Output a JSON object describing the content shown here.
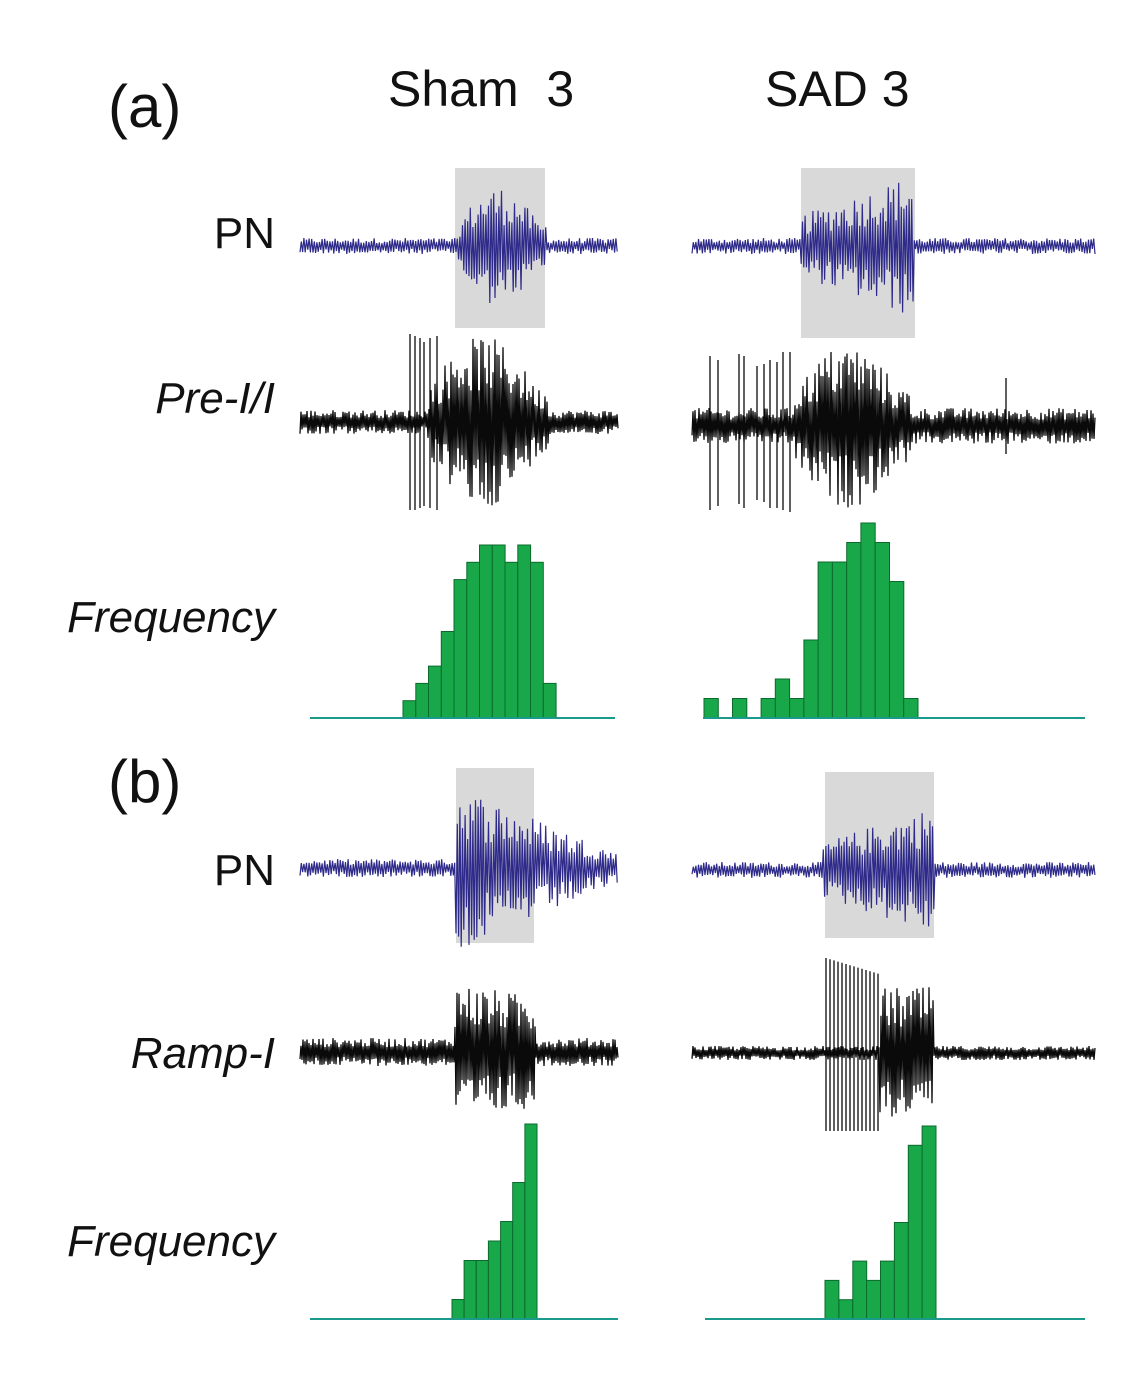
{
  "figure": {
    "columns": [
      "Sham  3",
      "SAD 3"
    ],
    "panels": [
      {
        "label": "(a)",
        "rows": [
          "PN",
          "Pre-I/I",
          "Frequency"
        ]
      },
      {
        "label": "(b)",
        "rows": [
          "PN",
          "Ramp-I",
          "Frequency"
        ]
      }
    ]
  },
  "colors": {
    "pn_trace": "#2e2a8a",
    "neuron_trace": "#0a0a0a",
    "histogram_fill": "#18a84a",
    "histogram_edge": "#0b6b2c",
    "baseline": "#1a9a8a",
    "shading": "#d9d9d9"
  },
  "chart_data": [
    {
      "type": "bar",
      "panel": "(a)",
      "column": "Sham  3",
      "values": [
        1,
        2,
        3,
        5,
        8,
        9,
        10,
        10,
        9,
        10,
        9,
        2
      ]
    },
    {
      "type": "bar",
      "panel": "(a)",
      "column": "SAD 3",
      "values": [
        1,
        0,
        1,
        0,
        1,
        2,
        1,
        4,
        8,
        8,
        9,
        10,
        9,
        7,
        1
      ]
    },
    {
      "type": "bar",
      "panel": "(b)",
      "column": "Sham  3",
      "values": [
        1,
        3,
        3,
        4,
        5,
        7,
        10
      ]
    },
    {
      "type": "bar",
      "panel": "(b)",
      "column": "SAD 3",
      "values": [
        2,
        1,
        3,
        2,
        3,
        5,
        9,
        10
      ]
    }
  ]
}
